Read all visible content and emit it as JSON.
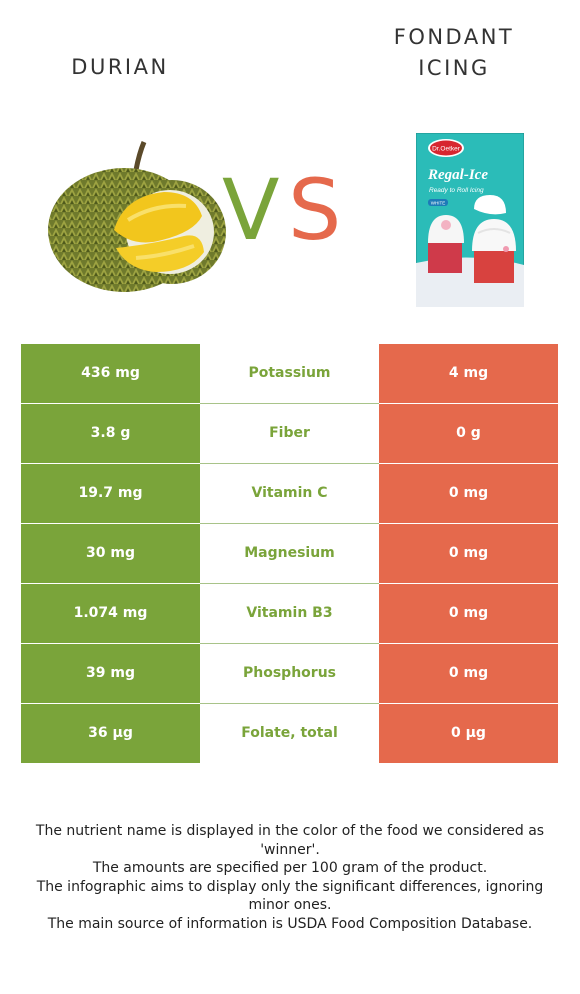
{
  "header": {
    "left_title": "DURIAN",
    "right_title_line1": "FONDANT",
    "right_title_line2": "ICING",
    "vs_v": "V",
    "vs_s": "S"
  },
  "product_box": {
    "brand": "Dr.Oetker",
    "name": "Regal-Ice",
    "tagline": "Ready to Roll Icing",
    "variant": "WHITE"
  },
  "colors": {
    "winner_left": "#7aa43a",
    "winner_right": "#e5694c"
  },
  "rows": [
    {
      "left": "436 mg",
      "nutrient": "Potassium",
      "right": "4 mg"
    },
    {
      "left": "3.8 g",
      "nutrient": "Fiber",
      "right": "0 g"
    },
    {
      "left": "19.7 mg",
      "nutrient": "Vitamin C",
      "right": "0 mg"
    },
    {
      "left": "30 mg",
      "nutrient": "Magnesium",
      "right": "0 mg"
    },
    {
      "left": "1.074 mg",
      "nutrient": "Vitamin B3",
      "right": "0 mg"
    },
    {
      "left": "39 mg",
      "nutrient": "Phosphorus",
      "right": "0 mg"
    },
    {
      "left": "36 µg",
      "nutrient": "Folate, total",
      "right": "0 µg"
    }
  ],
  "notes": [
    "The nutrient name is displayed in the color of the food we considered as 'winner'.",
    "The amounts are specified per 100 gram of the product.",
    "The infographic aims to display only the significant differences, ignoring minor ones.",
    "The main source of information is USDA Food Composition Database."
  ]
}
